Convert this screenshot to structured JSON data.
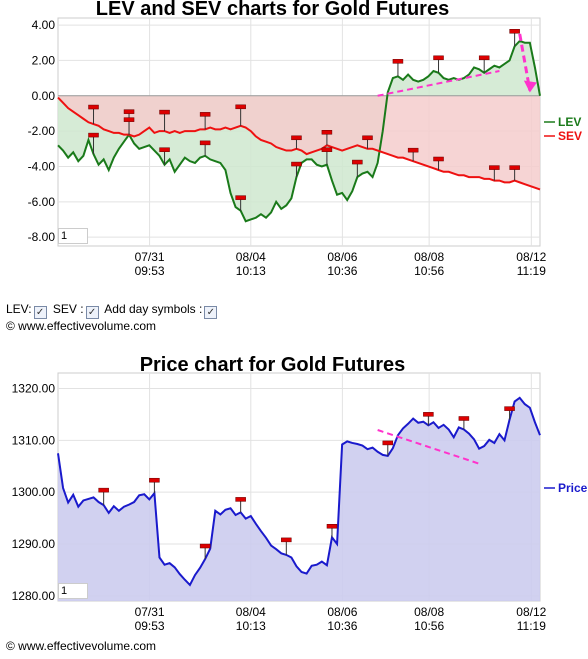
{
  "chart_data": [
    {
      "type": "line",
      "title": "LEV and SEV charts for Gold Futures",
      "ylim": [
        -8.5,
        4.4
      ],
      "yticks": [
        "4.00",
        "2.00",
        "0.00",
        "-2.00",
        "-4.00",
        "-6.00",
        "-8.00"
      ],
      "ytick_values": [
        4,
        2,
        0,
        -2,
        -4,
        -6,
        -8
      ],
      "xticks": [
        {
          "date": "07/31",
          "time": "09:53"
        },
        {
          "date": "08/04",
          "time": "10:13"
        },
        {
          "date": "08/06",
          "time": "10:36"
        },
        {
          "date": "08/08",
          "time": "10:56"
        },
        {
          "date": "08/12",
          "time": "11:19"
        }
      ],
      "series": [
        {
          "name": "LEV",
          "color": "#1a7a1a",
          "fill": "#cfe8cf",
          "values": [
            -2.8,
            -3.1,
            -3.5,
            -3.2,
            -3.7,
            -3.4,
            -2.5,
            -3.3,
            -3.9,
            -3.6,
            -4.2,
            -3.5,
            -3.0,
            -2.6,
            -2.2,
            -2.7,
            -3.0,
            -2.9,
            -2.8,
            -3.1,
            -3.4,
            -3.9,
            -3.6,
            -4.3,
            -3.9,
            -3.5,
            -3.7,
            -3.8,
            -3.5,
            -3.4,
            -3.6,
            -3.7,
            -3.8,
            -4.2,
            -5.5,
            -6.3,
            -6.5,
            -7.1,
            -7.0,
            -6.9,
            -6.7,
            -6.9,
            -6.6,
            -6.0,
            -6.4,
            -6.2,
            -5.8,
            -4.6,
            -3.8,
            -3.6,
            -3.6,
            -3.9,
            -4.0,
            -3.9,
            -4.8,
            -5.6,
            -5.5,
            -5.9,
            -5.4,
            -4.6,
            -4.4,
            -4.3,
            -4.6,
            -3.8,
            -2.0,
            0.2,
            1.0,
            1.1,
            0.9,
            1.2,
            0.9,
            0.8,
            0.9,
            1.1,
            1.4,
            1.3,
            1.0,
            0.9,
            1.0,
            0.9,
            1.0,
            1.2,
            1.6,
            1.5,
            1.3,
            1.5,
            1.7,
            1.6,
            1.8,
            2.0,
            2.8,
            3.1,
            3.0,
            3.0,
            1.6,
            0.0
          ]
        },
        {
          "name": "SEV",
          "color": "#ee1111",
          "fill": "#f5cccc",
          "values": [
            -0.1,
            -0.4,
            -0.7,
            -0.9,
            -1.1,
            -1.3,
            -1.5,
            -1.6,
            -1.7,
            -1.9,
            -2.0,
            -2.1,
            -2.1,
            -2.2,
            -2.2,
            -2.3,
            -2.2,
            -2.0,
            -1.8,
            -2.1,
            -2.0,
            -2.0,
            -2.1,
            -2.0,
            -2.1,
            -2.0,
            -2.0,
            -2.0,
            -1.9,
            -1.9,
            -1.8,
            -1.9,
            -1.9,
            -1.8,
            -1.9,
            -1.8,
            -1.7,
            -1.8,
            -2.0,
            -2.3,
            -2.5,
            -2.6,
            -2.7,
            -2.9,
            -3.0,
            -3.1,
            -3.1,
            -3.0,
            -3.1,
            -3.3,
            -3.2,
            -3.1,
            -3.0,
            -2.8,
            -2.9,
            -3.0,
            -3.1,
            -3.0,
            -2.9,
            -2.8,
            -2.9,
            -3.0,
            -3.0,
            -3.1,
            -3.2,
            -3.3,
            -3.4,
            -3.5,
            -3.5,
            -3.6,
            -3.7,
            -3.8,
            -3.9,
            -4.0,
            -4.1,
            -4.2,
            -4.3,
            -4.3,
            -4.4,
            -4.5,
            -4.5,
            -4.6,
            -4.6,
            -4.6,
            -4.7,
            -4.7,
            -4.8,
            -4.8,
            -4.9,
            -4.9,
            -4.8,
            -4.9,
            -5.0,
            -5.1,
            -5.2,
            -5.3
          ]
        }
      ],
      "trendline": {
        "from": [
          63,
          0.0
        ],
        "to": [
          87,
          1.4
        ],
        "color": "#ff33cc"
      },
      "arrow": {
        "from": [
          91,
          3.5
        ],
        "to": [
          93,
          0.3
        ],
        "color": "#ff33cc"
      },
      "grid": true,
      "legend_position": "right"
    },
    {
      "type": "line",
      "title": "Price chart for Gold Futures",
      "ylim": [
        1279,
        1323
      ],
      "yticks": [
        "1320.00",
        "1310.00",
        "1300.00",
        "1290.00",
        "1280.00"
      ],
      "ytick_values": [
        1320,
        1310,
        1300,
        1290,
        1280
      ],
      "xticks": [
        {
          "date": "07/31",
          "time": "09:53"
        },
        {
          "date": "08/04",
          "time": "10:13"
        },
        {
          "date": "08/06",
          "time": "10:36"
        },
        {
          "date": "08/08",
          "time": "10:56"
        },
        {
          "date": "08/12",
          "time": "11:19"
        }
      ],
      "series": [
        {
          "name": "Price",
          "color": "#1a1acc",
          "fill": "#ccccee",
          "values": [
            1307.5,
            1300.8,
            1298.0,
            1299.5,
            1297.2,
            1298.4,
            1298.7,
            1299.0,
            1298.1,
            1297.5,
            1296.0,
            1297.3,
            1296.4,
            1297.2,
            1297.6,
            1298.1,
            1299.4,
            1299.6,
            1298.6,
            1299.8,
            1287.4,
            1286.0,
            1286.3,
            1285.5,
            1284.2,
            1283.1,
            1282.1,
            1284.0,
            1285.4,
            1287.1,
            1289.1,
            1296.4,
            1295.7,
            1296.6,
            1296.9,
            1295.6,
            1296.1,
            1294.9,
            1295.4,
            1293.9,
            1292.5,
            1291.2,
            1289.7,
            1289.0,
            1288.2,
            1287.9,
            1287.4,
            1285.7,
            1284.6,
            1284.3,
            1285.8,
            1286.0,
            1286.6,
            1285.9,
            1291.3,
            1290.0,
            1309.2,
            1309.8,
            1309.5,
            1309.3,
            1309.0,
            1308.3,
            1308.6,
            1307.8,
            1307.2,
            1307.0,
            1308.5,
            1311.0,
            1312.3,
            1313.2,
            1314.2,
            1313.4,
            1313.6,
            1312.9,
            1313.5,
            1312.4,
            1313.0,
            1312.1,
            1310.6,
            1312.5,
            1312.1,
            1311.3,
            1310.2,
            1308.4,
            1308.9,
            1310.1,
            1309.5,
            1311.2,
            1310.0,
            1314.0,
            1317.5,
            1318.2,
            1317.0,
            1316.3,
            1313.5,
            1311.0
          ]
        }
      ],
      "trendline": {
        "from": [
          63,
          1312
        ],
        "to": [
          83,
          1305.5
        ],
        "color": "#ff33cc"
      },
      "grid": true,
      "legend_position": "right"
    }
  ],
  "chart1": {
    "title": "LEV and SEV charts for Gold Futures",
    "legend_lev": "LEV",
    "legend_sev": "SEV",
    "zoom": "1"
  },
  "chart2": {
    "title": "Price chart for Gold Futures",
    "legend_price": "Price",
    "zoom": "1"
  },
  "controls": {
    "lev_label": "LEV:",
    "sev_label": "SEV :",
    "day_label": "Add day symbols :"
  },
  "copyright": "© www.effectivevolume.com",
  "copyright2": "© www.effectivevolume.com"
}
